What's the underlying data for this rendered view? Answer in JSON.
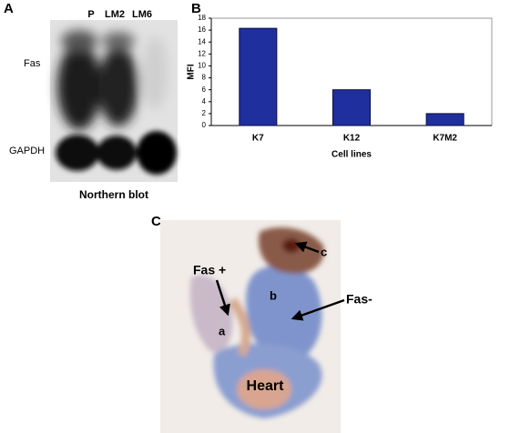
{
  "panels": {
    "a": {
      "label": "A",
      "lanes": [
        "P",
        "LM2",
        "LM6"
      ],
      "rows": [
        "Fas",
        "GAPDH"
      ],
      "caption": "Northern blot"
    },
    "c": {
      "label": "C",
      "annotations": [
        "Fas +",
        "Fas-",
        "a",
        "b",
        "c",
        "Heart"
      ]
    }
  },
  "chart_data": {
    "type": "bar",
    "panel_label": "B",
    "categories": [
      "K7",
      "K12",
      "K7M2"
    ],
    "values": [
      16.3,
      6,
      2
    ],
    "color": "#1f2f9e",
    "ylabel": "MFI",
    "xlabel": "Cell lines",
    "ylim": [
      0,
      18
    ],
    "yticks": [
      0,
      2,
      4,
      6,
      8,
      10,
      12,
      14,
      16,
      18
    ],
    "grid": false
  }
}
